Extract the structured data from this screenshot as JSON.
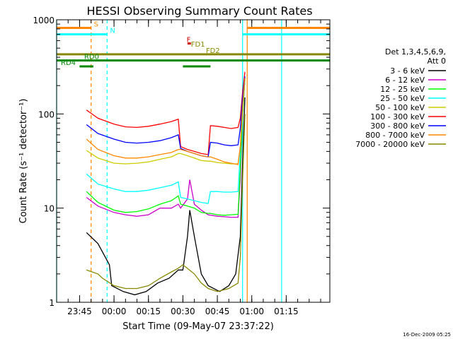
{
  "chart_data": {
    "type": "line",
    "title": "HESSI Observing Summary Count Rates",
    "xlabel": "Start Time (09-May-07 23:37:22)",
    "ylabel": "Count Rate (s⁻¹ detector⁻¹)",
    "yscale": "log",
    "ylim": [
      1,
      1000
    ],
    "xlim": [
      -10,
      109
    ],
    "x_unit": "minutes after 23:45 on 09-May-07",
    "x_ticks": [
      {
        "value": 0,
        "label": "23:45"
      },
      {
        "value": 15,
        "label": "00:00"
      },
      {
        "value": 30,
        "label": "00:15"
      },
      {
        "value": 45,
        "label": "00:30"
      },
      {
        "value": 60,
        "label": "00:45"
      },
      {
        "value": 75,
        "label": "01:00"
      },
      {
        "value": 90,
        "label": "01:15"
      }
    ],
    "y_ticks": [
      {
        "value": 1,
        "label": "1"
      },
      {
        "value": 10,
        "label": "10"
      },
      {
        "value": 100,
        "label": "100"
      },
      {
        "value": 1000,
        "label": "1000"
      }
    ],
    "legend": {
      "placement": "right",
      "header": [
        "Det 1,3,4,5,6,9,",
        "Att 0"
      ]
    },
    "series": [
      {
        "name": "3 - 6 keV",
        "color": "#000000",
        "x": [
          3,
          8,
          13,
          14,
          19,
          24,
          29,
          34,
          39,
          43,
          45,
          47,
          48,
          50,
          53,
          56,
          61,
          65,
          68,
          70,
          71,
          72
        ],
        "y": [
          5.5,
          4.2,
          2.5,
          1.5,
          1.3,
          1.2,
          1.3,
          1.6,
          1.8,
          2.2,
          2.2,
          5,
          9.5,
          5,
          2,
          1.5,
          1.3,
          1.5,
          2,
          5,
          30,
          150
        ]
      },
      {
        "name": "6 - 12 keV",
        "color": "#cc00cc",
        "x": [
          3,
          8,
          15,
          20,
          25,
          30,
          35,
          40,
          43,
          44,
          47,
          48,
          50,
          53,
          56,
          60,
          63,
          66,
          69,
          70,
          71,
          72
        ],
        "y": [
          13,
          10.5,
          9,
          8.5,
          8.2,
          8.5,
          10,
          10,
          11,
          10,
          12.5,
          20,
          11,
          9.5,
          8.5,
          8.2,
          8.1,
          8,
          8,
          20,
          100,
          230
        ]
      },
      {
        "name": "12 - 25 keV",
        "color": "#00ff00",
        "x": [
          3,
          8,
          15,
          20,
          25,
          30,
          35,
          40,
          43,
          44,
          47,
          50,
          53,
          56,
          57,
          60,
          63,
          66,
          69,
          70,
          71,
          72
        ],
        "y": [
          15,
          11.5,
          9.5,
          9,
          9.2,
          9.8,
          11,
          12,
          13.5,
          11,
          10.5,
          10,
          9,
          8.8,
          8.8,
          8.5,
          8.4,
          8.5,
          8.6,
          25,
          100,
          230
        ]
      },
      {
        "name": "25 - 50 keV",
        "color": "#00ffff",
        "x": [
          3,
          8,
          15,
          20,
          25,
          30,
          35,
          40,
          43,
          44,
          47,
          50,
          53,
          56,
          57,
          60,
          63,
          66,
          69,
          70,
          71,
          72
        ],
        "y": [
          23,
          18,
          16,
          15,
          15,
          15.5,
          16.5,
          17.5,
          19,
          13,
          12.5,
          12,
          11.5,
          11.2,
          15,
          15,
          14.8,
          14.8,
          15,
          40,
          120,
          230
        ]
      },
      {
        "name": "50 - 100 keV",
        "color": "#cccc00",
        "x": [
          3,
          8,
          15,
          20,
          25,
          30,
          35,
          40,
          43,
          44,
          47,
          50,
          53,
          56,
          57,
          60,
          63,
          66,
          69,
          70,
          71,
          72
        ],
        "y": [
          41,
          34,
          30,
          29.5,
          30,
          31,
          33,
          35,
          38,
          38,
          36,
          34,
          32,
          31.5,
          31.5,
          30.5,
          30,
          29.5,
          29.5,
          45,
          120,
          240
        ]
      },
      {
        "name": "100 - 300 keV",
        "color": "#ff0000",
        "x": [
          3,
          8,
          15,
          20,
          25,
          30,
          35,
          40,
          43,
          44,
          47,
          50,
          53,
          56,
          57,
          60,
          63,
          66,
          69,
          70,
          71,
          72
        ],
        "y": [
          110,
          90,
          78,
          73,
          72,
          74,
          78,
          83,
          88,
          45,
          42,
          40,
          38,
          37,
          75,
          74,
          72,
          70,
          72,
          90,
          170,
          280
        ]
      },
      {
        "name": "300 - 800 keV",
        "color": "#0000ff",
        "x": [
          3,
          8,
          15,
          20,
          25,
          30,
          35,
          40,
          43,
          44,
          47,
          50,
          53,
          56,
          57,
          60,
          63,
          66,
          69,
          70,
          71,
          72
        ],
        "y": [
          77,
          62,
          54,
          50,
          49,
          50,
          52,
          56,
          60,
          43,
          40,
          38,
          36,
          35,
          50,
          49,
          47,
          46,
          47,
          70,
          150,
          250
        ]
      },
      {
        "name": "800 - 7000 keV",
        "color": "#ff8800",
        "x": [
          3,
          8,
          15,
          20,
          25,
          30,
          35,
          40,
          43,
          44,
          47,
          50,
          53,
          56,
          57,
          60,
          63,
          66,
          69,
          70,
          71,
          72
        ],
        "y": [
          54,
          42,
          36,
          34,
          34,
          35,
          37,
          39,
          42,
          42,
          40,
          38,
          36,
          35,
          35,
          33,
          31,
          30,
          29,
          45,
          120,
          240
        ]
      },
      {
        "name": "7000 - 20000 keV",
        "color": "#888800",
        "x": [
          3,
          8,
          10,
          15,
          20,
          25,
          30,
          35,
          40,
          43,
          45,
          50,
          53,
          56,
          60,
          65,
          69,
          70,
          71,
          72
        ],
        "y": [
          2.2,
          2.0,
          1.8,
          1.5,
          1.4,
          1.4,
          1.5,
          1.8,
          2.1,
          2.3,
          2.5,
          2.0,
          1.6,
          1.4,
          1.3,
          1.4,
          1.6,
          3,
          20,
          100
        ]
      }
    ],
    "vlines": [
      {
        "x": -10,
        "color": "#00ffff",
        "dash": false
      },
      {
        "x": 5,
        "color": "#ff8800",
        "dash": true
      },
      {
        "x": 12,
        "color": "#00ffff",
        "dash": true
      },
      {
        "x": 71,
        "color": "#00ffff",
        "dash": false
      },
      {
        "x": 73,
        "color": "#ff8800",
        "dash": false
      },
      {
        "x": 88,
        "color": "#00ffff",
        "dash": false
      }
    ],
    "flag_bars": [
      {
        "label": "S",
        "color": "#ff8800",
        "segments": [
          [
            -10,
            5
          ],
          [
            73,
            109
          ]
        ],
        "y_level": 820
      },
      {
        "label": "N",
        "color": "#00ffff",
        "segments": [
          [
            -10,
            12
          ],
          [
            71,
            109
          ]
        ],
        "y_level": 700
      },
      {
        "label": "F",
        "color": "#cc0000",
        "segments": [
          [
            47,
            48.5
          ]
        ],
        "y_level": 560
      },
      {
        "label": "FD1",
        "color": "#888800",
        "segments": [],
        "y_level": 500
      },
      {
        "label": "FD2",
        "color": "#888800",
        "segments": [
          [
            -10,
            109
          ]
        ],
        "y_level": 430
      },
      {
        "label": "RD0",
        "color": "#008800",
        "segments": [
          [
            -10,
            109
          ]
        ],
        "y_level": 370
      },
      {
        "label": "RD4",
        "color": "#008800",
        "segments": [
          [
            0,
            6
          ],
          [
            45,
            57
          ]
        ],
        "y_level": 320
      }
    ]
  },
  "footer": {
    "timestamp": "16-Dec-2009 05:25"
  }
}
